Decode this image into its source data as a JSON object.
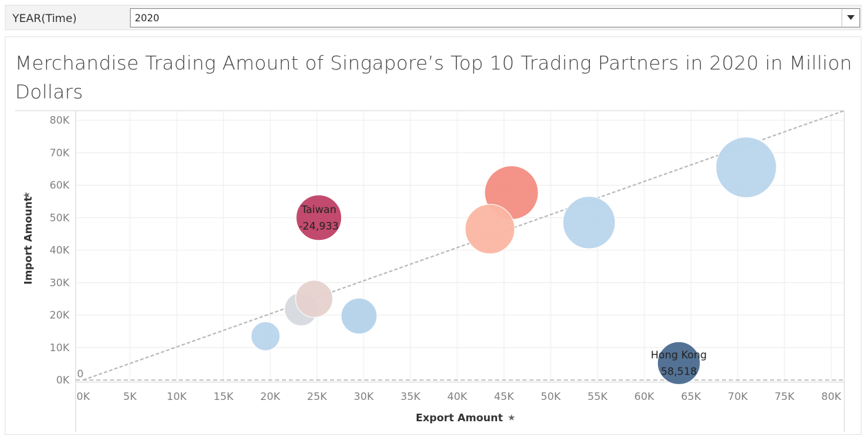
{
  "filter": {
    "label": "YEAR(Time)",
    "selected": "2020"
  },
  "chart_title": "Merchandise Trading Amount of Singapore’s Top 10 Trading Partners in 2020 in Million Dollars",
  "colors": {
    "grid": "#ececec",
    "axis": "#c8c8c8",
    "trend": "#b8b8b8"
  },
  "chart_data": {
    "type": "scatter",
    "title": "Merchandise Trading Amount of Singapore’s Top 10 Trading Partners in 2020 in Million Dollars",
    "xlabel": "Export Amount",
    "ylabel": "Import Amount",
    "xlim": [
      0,
      80000
    ],
    "ylim": [
      -2000,
      80000
    ],
    "x_ticks": [
      "0K",
      "5K",
      "10K",
      "15K",
      "20K",
      "25K",
      "30K",
      "35K",
      "40K",
      "45K",
      "50K",
      "55K",
      "60K",
      "65K",
      "70K",
      "75K",
      "80K"
    ],
    "y_ticks": [
      "0K",
      "10K",
      "20K",
      "30K",
      "40K",
      "50K",
      "60K",
      "70K",
      "80K"
    ],
    "zero_label": "0",
    "grid": true,
    "reference_line": "y = x",
    "points": [
      {
        "x": 70900,
        "y": 65500,
        "size": 44,
        "color": "#b9d5ec"
      },
      {
        "x": 54100,
        "y": 48500,
        "size": 38,
        "color": "#b9d5ec"
      },
      {
        "x": 45800,
        "y": 57700,
        "size": 39,
        "color": "#f3877b",
        "opacity": 0.9
      },
      {
        "x": 43500,
        "y": 46500,
        "size": 36,
        "color": "#fbb6a2"
      },
      {
        "x": 25200,
        "y": 50000,
        "size": 33,
        "color": "#bf4067",
        "label_name": "Taiwan",
        "label_value": "-24,933"
      },
      {
        "x": 29500,
        "y": 19700,
        "size": 26,
        "color": "#b3d2ea"
      },
      {
        "x": 23300,
        "y": 21800,
        "size": 24,
        "color": "#d6d9dd"
      },
      {
        "x": 24700,
        "y": 25000,
        "size": 27,
        "color": "#e6d2cf"
      },
      {
        "x": 19500,
        "y": 13500,
        "size": 21,
        "color": "#b9d5ec"
      },
      {
        "x": 63700,
        "y": 5200,
        "size": 31,
        "color": "#4a6a8f",
        "label_name": "Hong Kong",
        "label_value": "58,518"
      }
    ]
  }
}
